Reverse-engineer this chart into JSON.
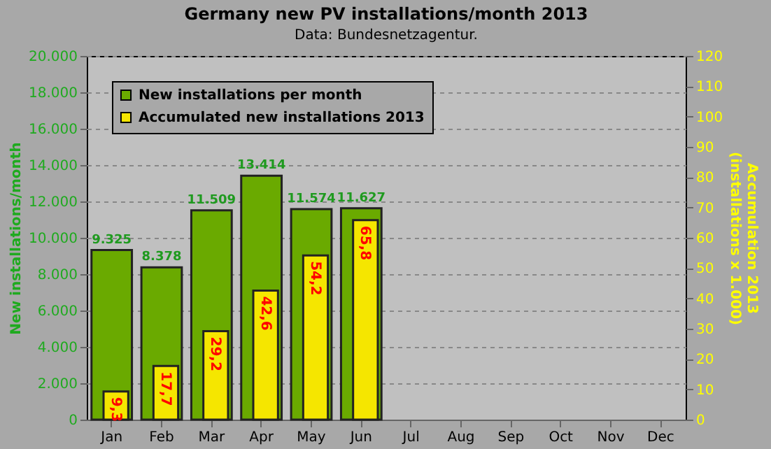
{
  "chart_data": {
    "type": "bar",
    "title": "Germany new PV installations/month  2013",
    "subtitle": "Data: Bundesnetzagentur.",
    "ylabel": "New installations/month",
    "y2label": "Accumulation 2013\n(installations x 1.000)",
    "categories": [
      "Jan",
      "Feb",
      "Mar",
      "Apr",
      "May",
      "Jun",
      "Jul",
      "Aug",
      "Sep",
      "Oct",
      "Nov",
      "Dec"
    ],
    "series": [
      {
        "name": "New installations per month",
        "color": "#6aaa00",
        "values": [
          9325,
          8378,
          11509,
          13414,
          11574,
          11627,
          null,
          null,
          null,
          null,
          null,
          null
        ],
        "value_labels": [
          "9.325",
          "8.378",
          "11.509",
          "13.414",
          "11.574",
          "11.627",
          null,
          null,
          null,
          null,
          null,
          null
        ]
      },
      {
        "name": "Accumulated new installations 2013",
        "color": "#f5e600",
        "axis": "y2",
        "values": [
          9.3,
          17.7,
          29.2,
          42.6,
          54.2,
          65.8,
          null,
          null,
          null,
          null,
          null,
          null
        ],
        "value_labels": [
          "9,3",
          "17,7",
          "29,2",
          "42,6",
          "54,2",
          "65,8",
          null,
          null,
          null,
          null,
          null,
          null
        ]
      }
    ],
    "ylim": [
      0,
      20000
    ],
    "yticks": [
      {
        "value": 0,
        "label": "0"
      },
      {
        "value": 2000,
        "label": "2.000"
      },
      {
        "value": 4000,
        "label": "4.000"
      },
      {
        "value": 6000,
        "label": "6.000"
      },
      {
        "value": 8000,
        "label": "8.000"
      },
      {
        "value": 10000,
        "label": "10.000"
      },
      {
        "value": 12000,
        "label": "12.000"
      },
      {
        "value": 14000,
        "label": "14.000"
      },
      {
        "value": 16000,
        "label": "16.000"
      },
      {
        "value": 18000,
        "label": "18.000"
      },
      {
        "value": 20000,
        "label": "20.000"
      }
    ],
    "y2lim": [
      0,
      120
    ],
    "y2ticks": [
      0,
      10,
      20,
      30,
      40,
      50,
      60,
      70,
      80,
      90,
      100,
      110,
      120
    ],
    "grid": "y",
    "legend": "top left"
  }
}
